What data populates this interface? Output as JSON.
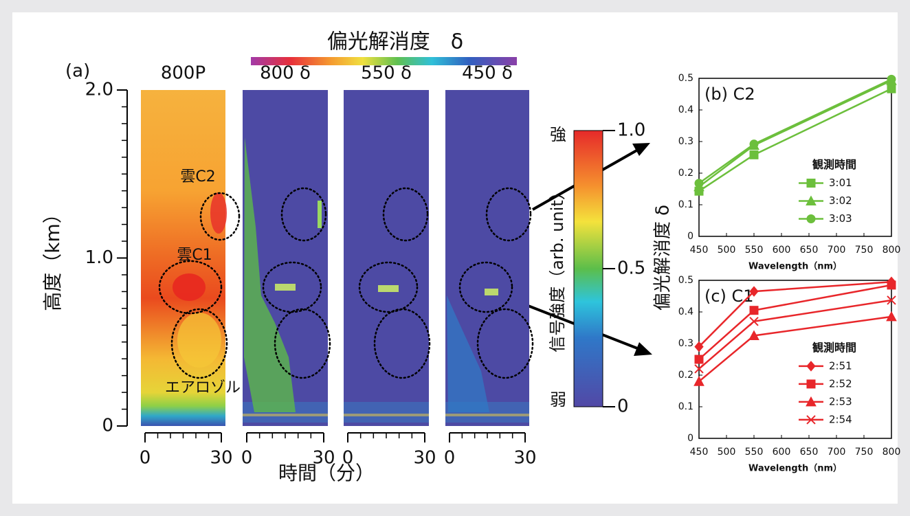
{
  "figure": {
    "panel_label": "(a)",
    "top_colorbar_title": "偏光解消度　δ",
    "panel_titles": [
      "800P",
      "800 δ",
      "550 δ",
      "450 δ"
    ],
    "y_label": "高度（km）",
    "ylim": [
      0,
      2
    ],
    "yticks": [
      {
        "value": 2,
        "label": "2.0"
      },
      {
        "value": 1,
        "label": "1.0"
      },
      0
    ],
    "yminor_ticks": [
      0.1,
      0.2,
      0.3,
      0.4,
      0.5,
      0.6,
      0.7,
      0.8,
      0.9,
      1.1,
      1.2,
      1.3,
      1.4,
      1.5,
      1.6,
      1.7,
      1.8,
      1.9
    ],
    "x_label": "時間（分）",
    "xlim": [
      0,
      30
    ],
    "xticks": [
      0,
      30
    ],
    "xminor_ticks": [
      5,
      10,
      15,
      20,
      25
    ],
    "annotations": [
      "雲C2",
      "雲C1",
      "エアロゾル"
    ],
    "colorbar": {
      "label": "信号強度（arb. unit）",
      "high": "強",
      "low": "弱",
      "lim": [
        0,
        1
      ],
      "ticks": [
        {
          "value": 1,
          "label": "1.0"
        },
        0.5,
        0
      ]
    },
    "right_label": "偏光解消度 δ"
  },
  "chart_data": [
    {
      "type": "line",
      "title": "(b)  C2",
      "x_label": "Wavelength（nm）",
      "x": [
        450,
        550,
        800
      ],
      "xlim": [
        450,
        800
      ],
      "xticks": [
        450,
        500,
        550,
        600,
        650,
        700,
        750,
        800
      ],
      "ylim": [
        0,
        0.5
      ],
      "yticks": [
        0,
        0.1,
        0.2,
        0.3,
        0.4,
        0.5
      ],
      "legend_title": "観測時間",
      "legend": "center right",
      "series": [
        {
          "name": "3:01",
          "color": "#6cbf3c",
          "marker": "square",
          "values": [
            0.143,
            0.258,
            0.467
          ]
        },
        {
          "name": "3:02",
          "color": "#6cbf3c",
          "marker": "triangle",
          "values": [
            0.157,
            0.288,
            0.493
          ]
        },
        {
          "name": "3:03",
          "color": "#6cbf3c",
          "marker": "circle",
          "values": [
            0.168,
            0.292,
            0.497
          ]
        }
      ]
    },
    {
      "type": "line",
      "title": "(c)  C1",
      "x_label": "Wavelength（nm）",
      "x": [
        450,
        550,
        800
      ],
      "xlim": [
        450,
        800
      ],
      "xticks": [
        450,
        500,
        550,
        600,
        650,
        700,
        750,
        800
      ],
      "ylim": [
        0,
        0.5
      ],
      "yticks": [
        0,
        0.1,
        0.2,
        0.3,
        0.4,
        0.5
      ],
      "legend_title": "観測時間",
      "legend": "lower right",
      "series": [
        {
          "name": "2:51",
          "color": "#e8262a",
          "marker": "diamond",
          "values": [
            0.29,
            0.465,
            0.495
          ]
        },
        {
          "name": "2:52",
          "color": "#e8262a",
          "marker": "square",
          "values": [
            0.25,
            0.405,
            0.485
          ]
        },
        {
          "name": "2:53",
          "color": "#e8262a",
          "marker": "triangle",
          "values": [
            0.18,
            0.325,
            0.385
          ]
        },
        {
          "name": "2:54",
          "color": "#e8262a",
          "marker": "x",
          "values": [
            0.22,
            0.37,
            0.437
          ]
        }
      ]
    }
  ]
}
